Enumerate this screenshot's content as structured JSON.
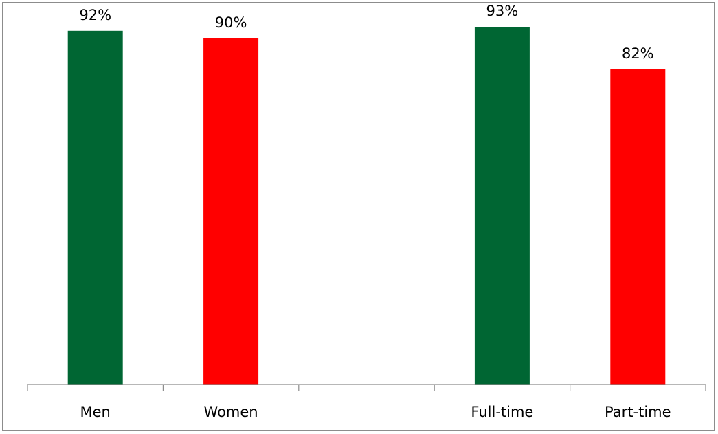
{
  "chart_data": {
    "type": "bar",
    "categories": [
      "Men",
      "Women",
      "",
      "Full-time",
      "Part-time"
    ],
    "values": [
      92,
      90,
      null,
      93,
      82
    ],
    "data_labels": [
      "92%",
      "90%",
      "",
      "93%",
      "82%"
    ],
    "colors": [
      "#006633",
      "#ff0000",
      "",
      "#006633",
      "#ff0000"
    ],
    "ylim": [
      0,
      100
    ],
    "grid": false,
    "axis_color": "#8c8c8c"
  }
}
